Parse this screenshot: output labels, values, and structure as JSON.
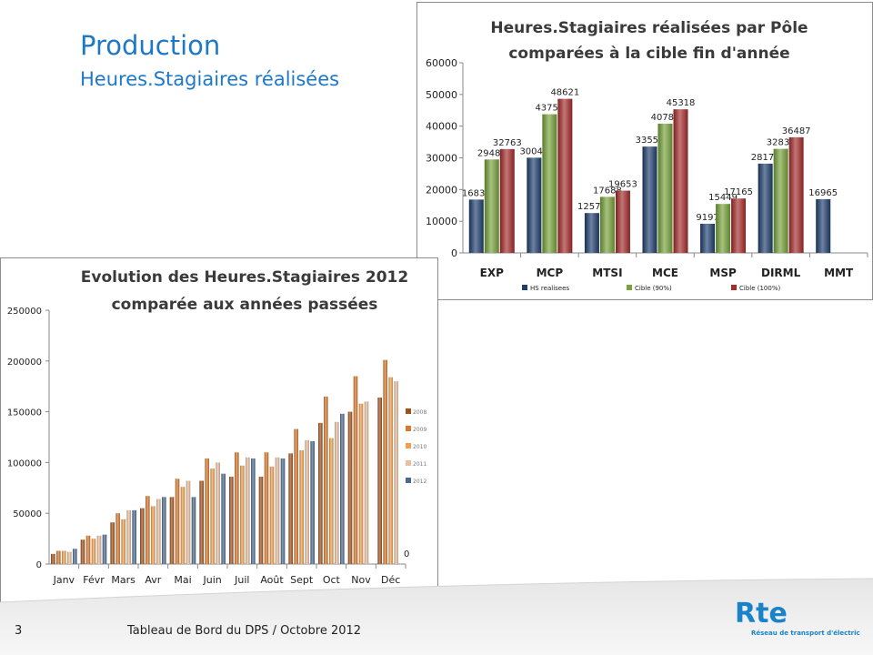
{
  "slide": {
    "title": "Production",
    "subtitle": "Heures.Stagiaires réalisées",
    "page_number": "3",
    "footer": "Tableau de Bord du DPS / Octobre 2012",
    "logo_text": "Rte",
    "logo_tagline": "Réseau de transport d'électricité",
    "brand_color": "#1e78c8",
    "logo_color": "#1a82c8"
  },
  "chart_data": [
    {
      "type": "bar",
      "title_lines": [
        "Heures.Stagiaires réalisées par Pôle",
        "comparées à la cible fin d'année"
      ],
      "categories": [
        "EXP",
        "MCP",
        "MTSI",
        "MCE",
        "MSP",
        "DIRML",
        "MMT"
      ],
      "series": [
        {
          "name": "HS realisees",
          "color": "#1f3f6e",
          "values": [
            16830,
            30043,
            12578,
            33554,
            9197,
            28172,
            16965
          ]
        },
        {
          "name": "Cible (90%)",
          "color": "#77a33a",
          "values": [
            29487,
            43759,
            17688,
            40786,
            15449,
            32838,
            null
          ]
        },
        {
          "name": "Cible (100%)",
          "color": "#a52b2b",
          "values": [
            32763,
            48621,
            19653,
            45318,
            17165,
            36487,
            null
          ]
        }
      ],
      "data_labels": [
        [
          "16830",
          "30043",
          "12578",
          "33554",
          "9197",
          "28172",
          "16965"
        ],
        [
          "29487",
          "43759",
          "17688",
          "40786",
          "15449",
          "32838",
          ""
        ],
        [
          "32763",
          "48621",
          "19653",
          "45318",
          "17165",
          "36487",
          ""
        ]
      ],
      "yticks": [
        "0",
        "10000",
        "20000",
        "30000",
        "40000",
        "50000",
        "60000"
      ],
      "ylim": [
        0,
        60000
      ],
      "grid": false,
      "legend": "bottom"
    },
    {
      "type": "bar",
      "title_lines": [
        "Evolution des Heures.Stagiaires 2012",
        "comparée aux années passées"
      ],
      "categories": [
        "Janv",
        "Févr",
        "Mars",
        "Avr",
        "Mai",
        "Juin",
        "Juil",
        "Août",
        "Sept",
        "Oct",
        "Nov",
        "Déc"
      ],
      "series": [
        {
          "name": "2008",
          "color": "#a0501a",
          "values": [
            10000,
            24000,
            41000,
            55000,
            66000,
            82000,
            86000,
            86000,
            109000,
            139000,
            150000,
            164000
          ]
        },
        {
          "name": "2009",
          "color": "#d8782a",
          "values": [
            13000,
            28000,
            50000,
            67000,
            84000,
            104000,
            110000,
            110000,
            133000,
            165000,
            185000,
            201000
          ]
        },
        {
          "name": "2010",
          "color": "#f0a050",
          "values": [
            13000,
            25000,
            44000,
            57000,
            76000,
            94000,
            97000,
            96000,
            112000,
            124000,
            158000,
            184000
          ]
        },
        {
          "name": "2011",
          "color": "#e8c0a0",
          "values": [
            12000,
            28000,
            53000,
            64000,
            82000,
            100000,
            105000,
            105000,
            122000,
            140000,
            160000,
            180000
          ]
        },
        {
          "name": "2012",
          "color": "#4a6a90",
          "values": [
            15000,
            29000,
            53000,
            66000,
            66000,
            89000,
            104000,
            104000,
            121000,
            148000,
            null,
            null
          ]
        }
      ],
      "yticks": [
        "0",
        "50000",
        "100000",
        "150000",
        "200000",
        "250000"
      ],
      "ylim": [
        0,
        250000
      ],
      "grid": false,
      "legend": "right",
      "stray_label": "0"
    }
  ]
}
